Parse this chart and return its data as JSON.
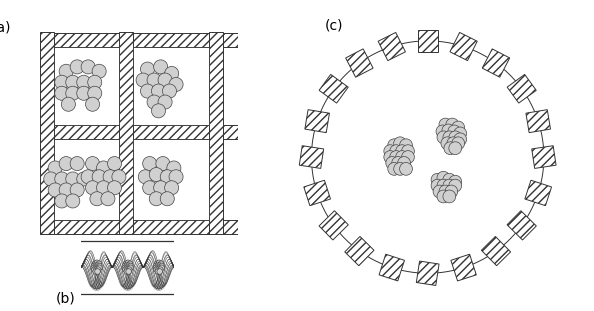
{
  "bg_color": "#ffffff",
  "label_a": "(a)",
  "label_b": "(b)",
  "label_c": "(c)",
  "enzyme_color": "#d0d0d0",
  "enzyme_edge": "#444444",
  "line_color": "#333333",
  "hatch_lw": 0.5
}
